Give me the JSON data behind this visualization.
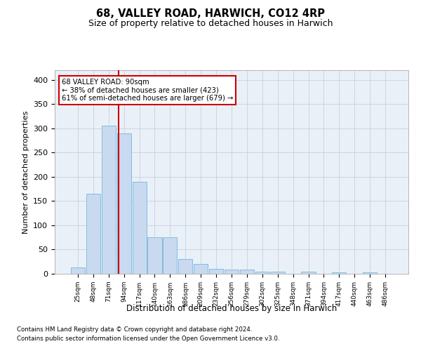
{
  "title1": "68, VALLEY ROAD, HARWICH, CO12 4RP",
  "title2": "Size of property relative to detached houses in Harwich",
  "xlabel": "Distribution of detached houses by size in Harwich",
  "ylabel": "Number of detached properties",
  "categories": [
    "25sqm",
    "48sqm",
    "71sqm",
    "94sqm",
    "117sqm",
    "140sqm",
    "163sqm",
    "186sqm",
    "209sqm",
    "232sqm",
    "256sqm",
    "279sqm",
    "302sqm",
    "325sqm",
    "348sqm",
    "371sqm",
    "394sqm",
    "417sqm",
    "440sqm",
    "463sqm",
    "486sqm"
  ],
  "values": [
    13,
    165,
    305,
    290,
    190,
    75,
    75,
    30,
    20,
    10,
    8,
    8,
    5,
    5,
    0,
    5,
    0,
    3,
    0,
    3,
    0
  ],
  "bar_color": "#c9d9f0",
  "bar_edge_color": "#7fbfdf",
  "vline_x": 2.67,
  "vline_color": "#cc0000",
  "annotation_text": "68 VALLEY ROAD: 90sqm\n← 38% of detached houses are smaller (423)\n61% of semi-detached houses are larger (679) →",
  "annotation_box_color": "#ffffff",
  "annotation_box_edge": "#cc0000",
  "ylim": [
    0,
    420
  ],
  "yticks": [
    0,
    50,
    100,
    150,
    200,
    250,
    300,
    350,
    400
  ],
  "footer1": "Contains HM Land Registry data © Crown copyright and database right 2024.",
  "footer2": "Contains public sector information licensed under the Open Government Licence v3.0.",
  "bg_color": "#ffffff",
  "grid_color": "#c8d0e0",
  "ax_bg_color": "#eaf0f8"
}
